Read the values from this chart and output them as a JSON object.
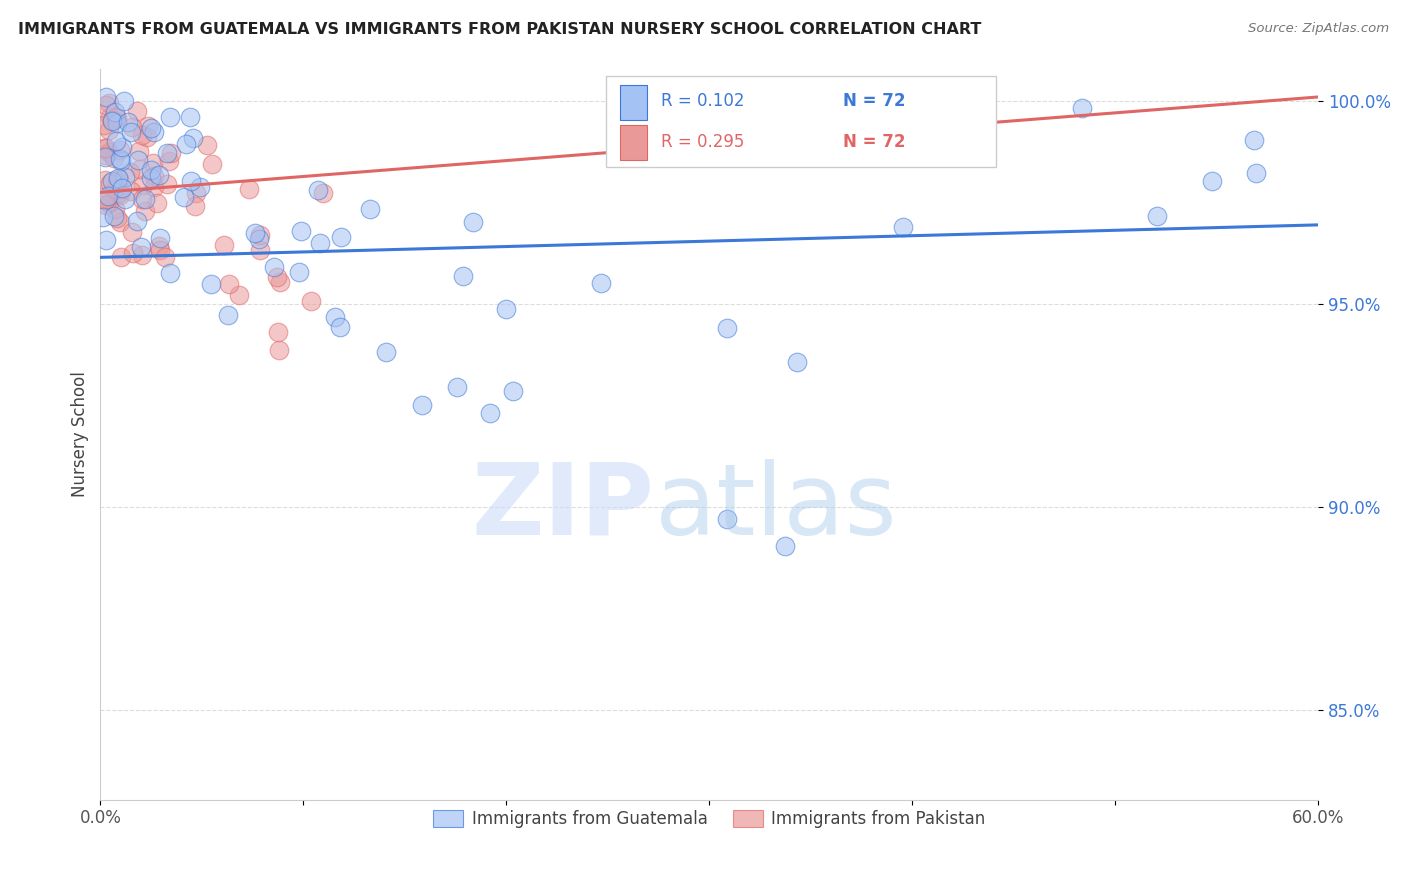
{
  "title": "IMMIGRANTS FROM GUATEMALA VS IMMIGRANTS FROM PAKISTAN NURSERY SCHOOL CORRELATION CHART",
  "source": "Source: ZipAtlas.com",
  "ylabel": "Nursery School",
  "xlim": [
    0.0,
    0.6
  ],
  "ylim": [
    0.828,
    1.008
  ],
  "yticks": [
    0.85,
    0.9,
    0.95,
    1.0
  ],
  "ytick_labels": [
    "85.0%",
    "90.0%",
    "95.0%",
    "100.0%"
  ],
  "legend_entries": [
    "Immigrants from Guatemala",
    "Immigrants from Pakistan"
  ],
  "R_guatemala": 0.102,
  "N_guatemala": 72,
  "R_pakistan": 0.295,
  "N_pakistan": 72,
  "color_guatemala": "#a4c2f4",
  "color_pakistan": "#ea9999",
  "line_color_guatemala": "#3c78d8",
  "line_color_pakistan": "#e06666",
  "background_color": "#ffffff",
  "guat_line_x0": 0.0,
  "guat_line_x1": 0.6,
  "guat_line_y0": 0.9615,
  "guat_line_y1": 0.9695,
  "pak_line_x0": 0.0,
  "pak_line_x1": 0.1,
  "pak_line_y0": 0.9775,
  "pak_line_y1": 0.9835
}
